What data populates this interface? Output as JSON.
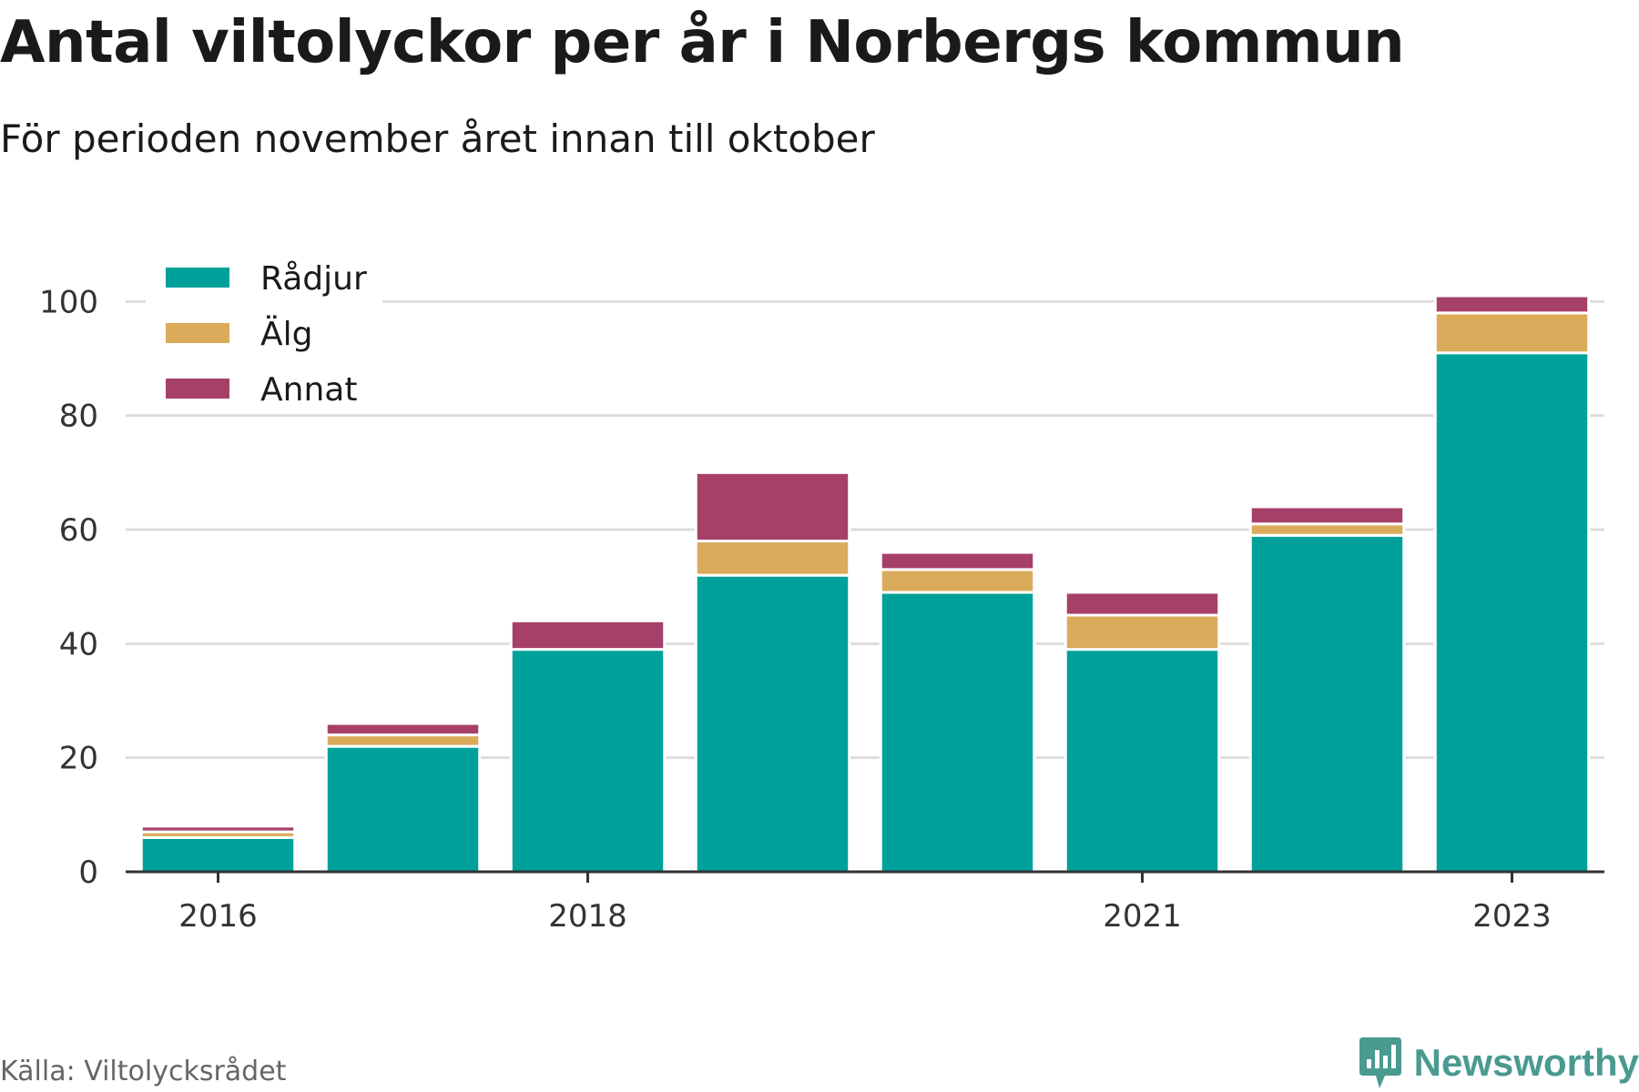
{
  "header": {
    "title": "Antal viltolyckor per år i Norbergs kommun",
    "subtitle": "För perioden november året innan till oktober"
  },
  "footer": {
    "source": "Källa: Viltolycksrådet",
    "brand": "Newsworthy"
  },
  "chart_data": {
    "type": "bar",
    "stacked": true,
    "categories": [
      "2016",
      "2017",
      "2018",
      "2019",
      "2020",
      "2021",
      "2022",
      "2023"
    ],
    "x_tick_labels": [
      "2016",
      "2018",
      "2021",
      "2023"
    ],
    "series": [
      {
        "name": "Rådjur",
        "color": "#00a19a",
        "values": [
          6,
          22,
          39,
          52,
          49,
          39,
          59,
          91
        ]
      },
      {
        "name": "Älg",
        "color": "#dbab5c",
        "values": [
          1,
          2,
          0,
          6,
          4,
          6,
          2,
          7
        ]
      },
      {
        "name": "Annat",
        "color": "#a64068",
        "values": [
          1,
          2,
          5,
          12,
          3,
          4,
          3,
          3
        ]
      }
    ],
    "y_ticks": [
      0,
      20,
      40,
      60,
      80,
      100
    ],
    "ylim": [
      0,
      105
    ],
    "grid": true,
    "legend_position": "top-left"
  }
}
